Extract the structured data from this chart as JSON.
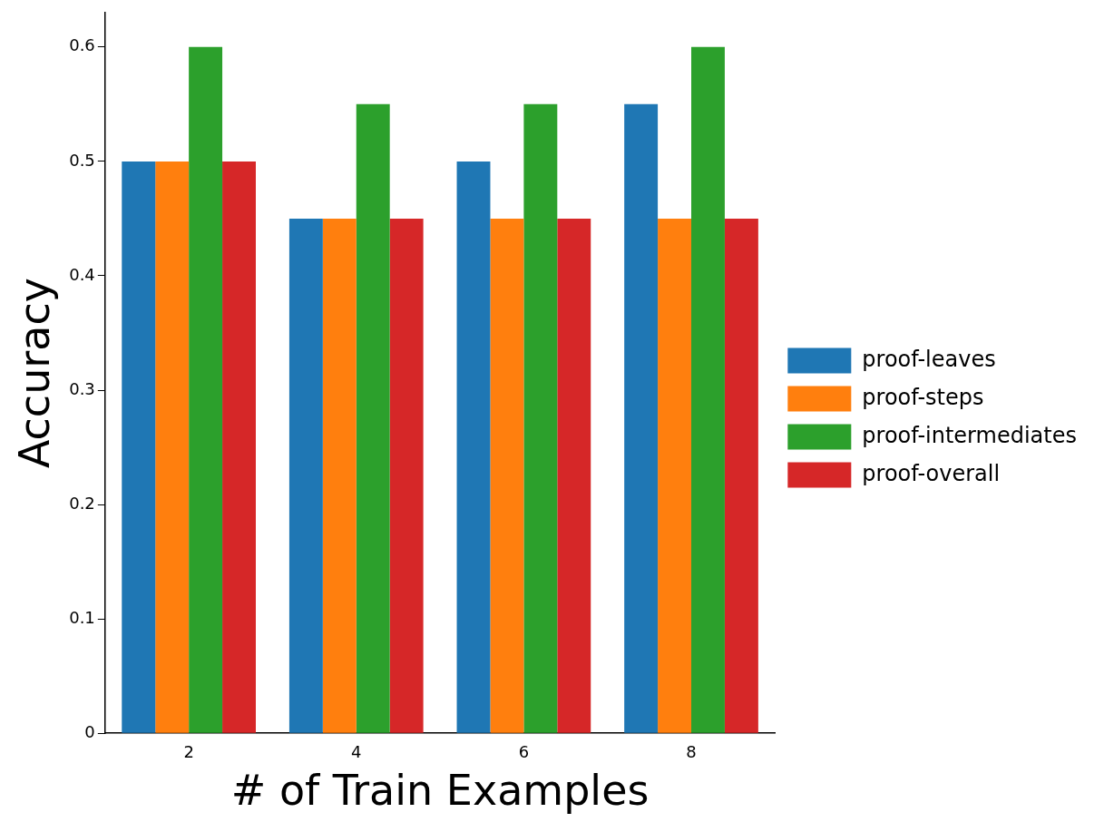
{
  "chart_data": {
    "type": "bar",
    "xlabel": "# of Train Examples",
    "ylabel": "Accuracy",
    "categories": [
      "2",
      "4",
      "6",
      "8"
    ],
    "series": [
      {
        "name": "proof-leaves",
        "color": "#1f77b4",
        "values": [
          0.5,
          0.45,
          0.5,
          0.55
        ]
      },
      {
        "name": "proof-steps",
        "color": "#ff7f0e",
        "values": [
          0.5,
          0.45,
          0.45,
          0.45
        ]
      },
      {
        "name": "proof-intermediates",
        "color": "#2ca02c",
        "values": [
          0.6,
          0.55,
          0.55,
          0.6
        ]
      },
      {
        "name": "proof-overall",
        "color": "#d62728",
        "values": [
          0.5,
          0.45,
          0.45,
          0.45
        ]
      }
    ],
    "ylim": [
      0,
      0.63
    ],
    "yticks": [
      0,
      0.1,
      0.2,
      0.3,
      0.4,
      0.5,
      0.6
    ],
    "grid": false,
    "legend": "right"
  }
}
